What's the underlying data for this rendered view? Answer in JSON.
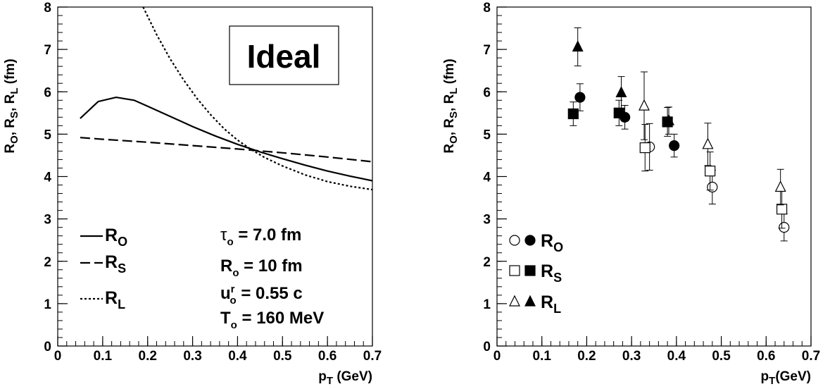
{
  "chart_data": [
    {
      "type": "line",
      "xlabel": "p_T (GeV)",
      "ylabel": "R_O, R_S, R_L (fm)",
      "xlim": [
        0,
        0.7
      ],
      "ylim": [
        0,
        8
      ],
      "x_ticks": [
        "0",
        "0.1",
        "0.2",
        "0.3",
        "0.4",
        "0.5",
        "0.6",
        "0.7"
      ],
      "y_ticks": [
        "0",
        "1",
        "2",
        "3",
        "4",
        "5",
        "6",
        "7",
        "8"
      ],
      "label_box": "Ideal",
      "series": [
        {
          "name": "R_O",
          "style": "solid",
          "points": [
            [
              0.05,
              5.37
            ],
            [
              0.09,
              5.77
            ],
            [
              0.13,
              5.87
            ],
            [
              0.17,
              5.8
            ],
            [
              0.2,
              5.66
            ],
            [
              0.25,
              5.42
            ],
            [
              0.3,
              5.18
            ],
            [
              0.35,
              4.96
            ],
            [
              0.4,
              4.76
            ],
            [
              0.45,
              4.58
            ],
            [
              0.5,
              4.42
            ],
            [
              0.55,
              4.27
            ],
            [
              0.6,
              4.13
            ],
            [
              0.65,
              4.01
            ],
            [
              0.7,
              3.9
            ]
          ]
        },
        {
          "name": "R_S",
          "style": "dashed",
          "points": [
            [
              0.05,
              4.92
            ],
            [
              0.1,
              4.88
            ],
            [
              0.2,
              4.81
            ],
            [
              0.3,
              4.73
            ],
            [
              0.4,
              4.65
            ],
            [
              0.5,
              4.56
            ],
            [
              0.6,
              4.46
            ],
            [
              0.7,
              4.35
            ]
          ]
        },
        {
          "name": "R_L",
          "style": "dotted",
          "points": [
            [
              0.19,
              8.0
            ],
            [
              0.22,
              7.35
            ],
            [
              0.25,
              6.78
            ],
            [
              0.28,
              6.28
            ],
            [
              0.31,
              5.84
            ],
            [
              0.34,
              5.46
            ],
            [
              0.37,
              5.13
            ],
            [
              0.4,
              4.86
            ],
            [
              0.43,
              4.64
            ],
            [
              0.46,
              4.45
            ],
            [
              0.5,
              4.25
            ],
            [
              0.55,
              4.04
            ],
            [
              0.6,
              3.88
            ],
            [
              0.65,
              3.77
            ],
            [
              0.7,
              3.69
            ]
          ]
        }
      ],
      "legend": [
        {
          "label": "R",
          "sub": "O",
          "style": "solid"
        },
        {
          "label": "R",
          "sub": "S",
          "style": "dashed"
        },
        {
          "label": "R",
          "sub": "L",
          "style": "dotted"
        }
      ],
      "params": [
        {
          "main": "τ",
          "sub": "o",
          "rest": " = 7.0 fm"
        },
        {
          "main": "R",
          "sub": "o",
          "rest": " = 10 fm"
        },
        {
          "main": "u",
          "sub": "o",
          "sup": "r",
          "rest": " = 0.55 c"
        },
        {
          "main": "T",
          "sub": "o",
          "rest": " = 160 MeV"
        }
      ]
    },
    {
      "type": "scatter",
      "xlabel": "p_T(GeV)",
      "ylabel": "R_O, R_S, R_L (fm)",
      "xlim": [
        0,
        0.7
      ],
      "ylim": [
        0,
        8
      ],
      "x_ticks": [
        "0",
        "0.1",
        "0.2",
        "0.3",
        "0.4",
        "0.5",
        "0.6",
        "0.7"
      ],
      "y_ticks": [
        "0",
        "1",
        "2",
        "3",
        "4",
        "5",
        "6",
        "7",
        "8"
      ],
      "series": [
        {
          "name": "R_O open",
          "marker": "circle",
          "filled": false,
          "points": [
            [
              0.34,
              4.7,
              0.55
            ],
            [
              0.48,
              3.75,
              0.4
            ],
            [
              0.64,
              2.8,
              0.32
            ]
          ]
        },
        {
          "name": "R_O filled",
          "marker": "circle",
          "filled": true,
          "points": [
            [
              0.185,
              5.87,
              0.32
            ],
            [
              0.285,
              5.4,
              0.28
            ],
            [
              0.395,
              4.73,
              0.27
            ]
          ]
        },
        {
          "name": "R_S open",
          "marker": "square",
          "filled": false,
          "points": [
            [
              0.33,
              4.68,
              0.55
            ],
            [
              0.475,
              4.13,
              0.45
            ],
            [
              0.635,
              3.23,
              0.45
            ]
          ]
        },
        {
          "name": "R_S filled",
          "marker": "square",
          "filled": true,
          "points": [
            [
              0.17,
              5.48,
              0.28
            ],
            [
              0.272,
              5.5,
              0.3
            ],
            [
              0.38,
              5.29,
              0.34
            ]
          ]
        },
        {
          "name": "R_L open",
          "marker": "triangle",
          "filled": false,
          "points": [
            [
              0.328,
              5.67,
              0.8
            ],
            [
              0.47,
              4.76,
              0.5
            ],
            [
              0.632,
              3.75,
              0.42
            ]
          ]
        },
        {
          "name": "R_L filled",
          "marker": "triangle",
          "filled": true,
          "points": [
            [
              0.18,
              7.06,
              0.45
            ],
            [
              0.277,
              5.98,
              0.38
            ],
            [
              0.383,
              5.32,
              0.32
            ]
          ]
        }
      ],
      "legend": [
        {
          "label": "R",
          "sub": "O",
          "marker": "circle"
        },
        {
          "label": "R",
          "sub": "S",
          "marker": "square"
        },
        {
          "label": "R",
          "sub": "L",
          "marker": "triangle"
        }
      ]
    }
  ]
}
